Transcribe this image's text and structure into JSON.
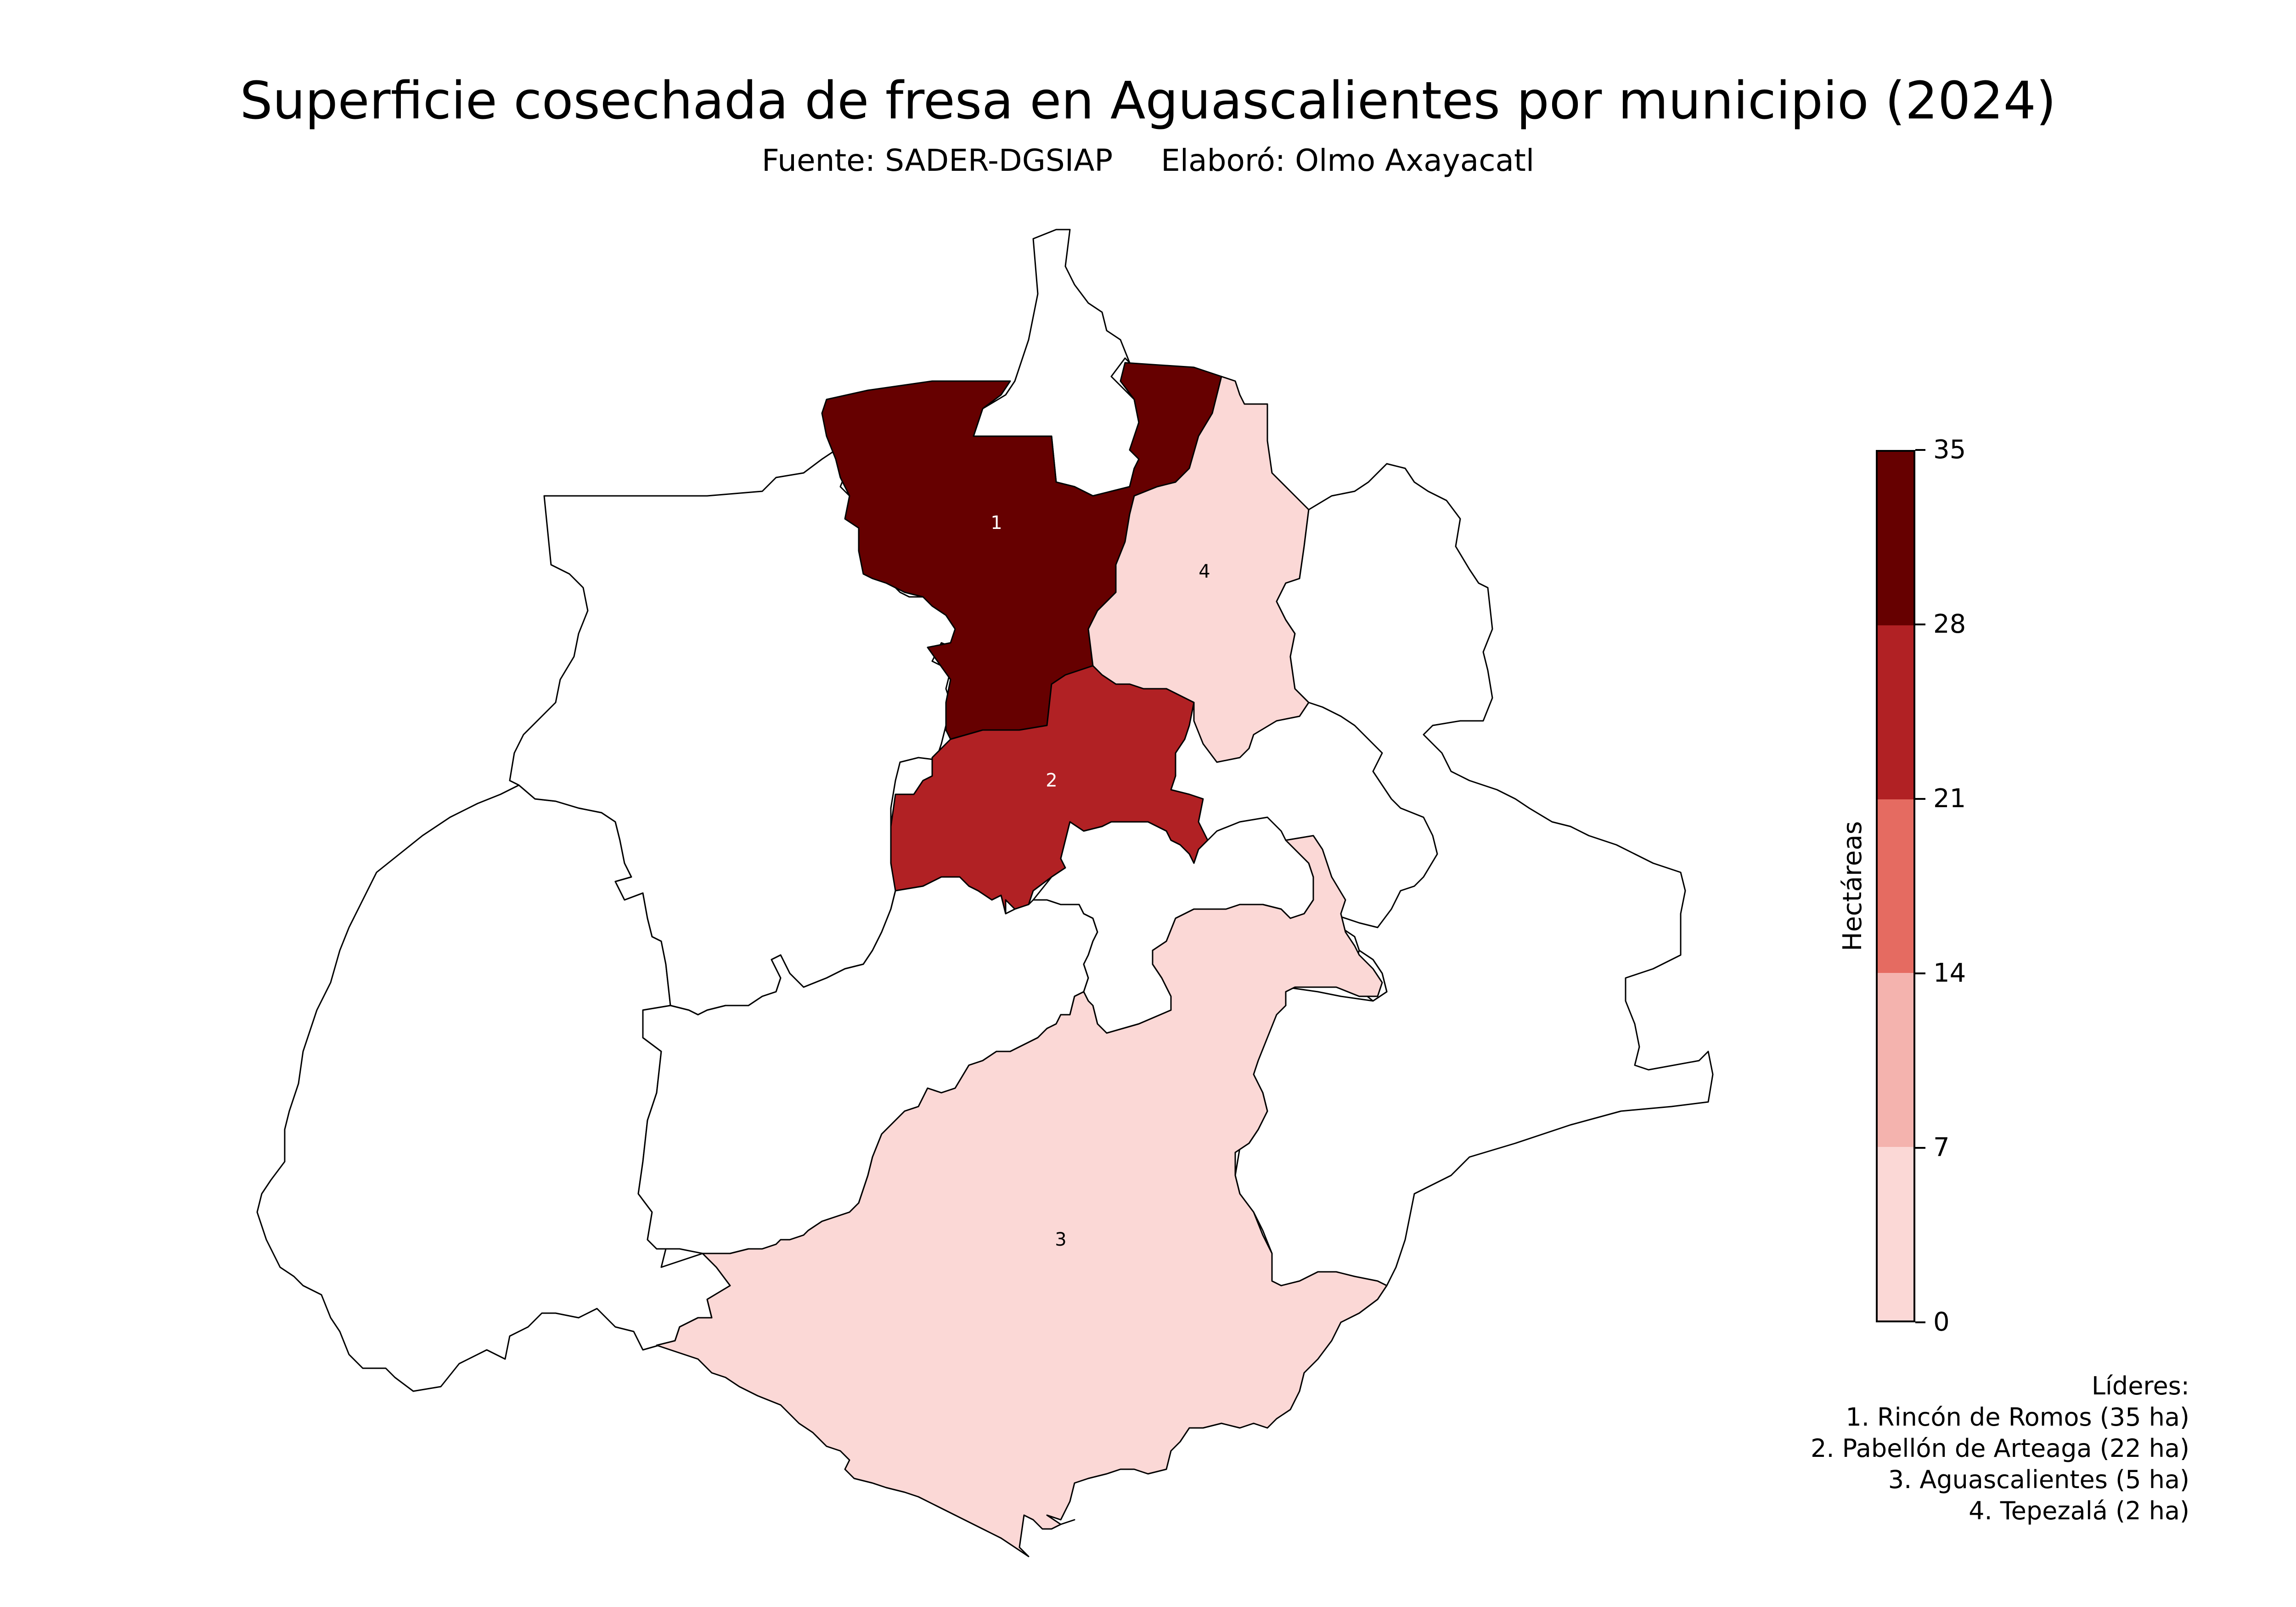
{
  "title": "Superficie cosechada de fresa en Aguascalientes por municipio (2024)",
  "subtitle": "Fuente: SADER-DGSIAP     Elaboró: Olmo Axayacatl",
  "colorbar": {
    "label": "Hectáreas",
    "ticks": [
      "0",
      "7",
      "14",
      "21",
      "28",
      "35"
    ],
    "range": [
      0,
      35
    ],
    "bins": [
      {
        "from": 0,
        "to": 7,
        "color": "#fbd8d6"
      },
      {
        "from": 7,
        "to": 14,
        "color": "#f4b3ae"
      },
      {
        "from": 14,
        "to": 21,
        "color": "#e56b61"
      },
      {
        "from": 21,
        "to": 28,
        "color": "#b12124"
      },
      {
        "from": 28,
        "to": 35,
        "color": "#660000"
      }
    ]
  },
  "municipalities": [
    {
      "rank": "1",
      "name": "Rincón de Romos",
      "hectares": 35,
      "color": "#660000"
    },
    {
      "rank": "2",
      "name": "Pabellón de Arteaga",
      "hectares": 22,
      "color": "#b12124"
    },
    {
      "rank": "3",
      "name": "Aguascalientes",
      "hectares": 5,
      "color": "#fbd8d6"
    },
    {
      "rank": "4",
      "name": "Tepezalá",
      "hectares": 2,
      "color": "#fbd8d6"
    }
  ],
  "leaders": {
    "heading": "Líderes:",
    "items": [
      "1. Rincón de Romos (35 ha)",
      "2. Pabellón de Arteaga (22 ha)",
      "3. Aguascalientes (5 ha)",
      "4. Tepezalá (2 ha)"
    ]
  }
}
